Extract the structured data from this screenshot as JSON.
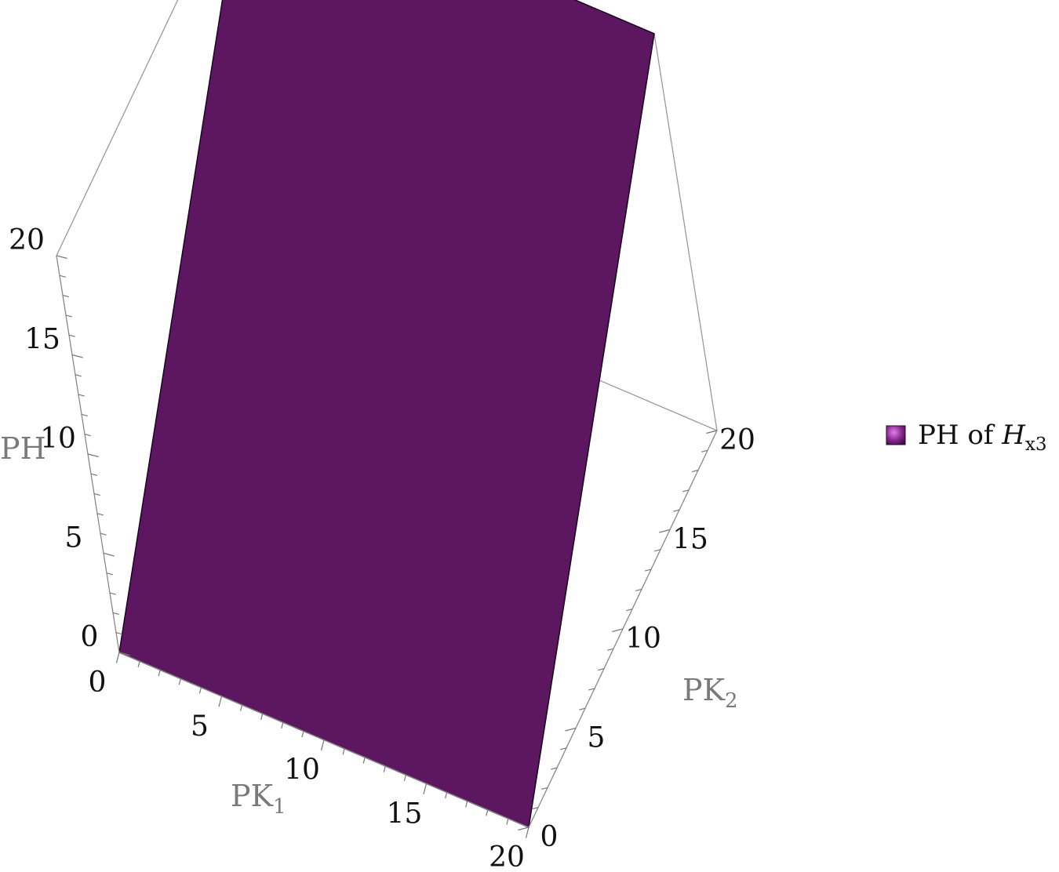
{
  "chart_data": {
    "type": "surface3d",
    "title": "",
    "axes": {
      "x": {
        "label": "PK",
        "label_sub": "1",
        "range": [
          0,
          20
        ],
        "ticks": [
          0,
          5,
          10,
          15,
          20
        ],
        "minor_step": 1
      },
      "y": {
        "label": "PK",
        "label_sub": "2",
        "range": [
          0,
          20
        ],
        "ticks": [
          0,
          5,
          10,
          15,
          20
        ],
        "minor_step": 1
      },
      "z": {
        "label": "PH",
        "range": [
          0,
          20
        ],
        "ticks": [
          0,
          5,
          10,
          15,
          20
        ],
        "minor_step": 1
      }
    },
    "series": [
      {
        "name": "PH of H_x3",
        "color": "#5c1760",
        "surface_corners": [
          {
            "x": 0,
            "y": 0,
            "z": 0
          },
          {
            "x": 20,
            "y": 0,
            "z": 0
          },
          {
            "x": 20,
            "y": 20,
            "z": 20
          },
          {
            "x": 0,
            "y": 20,
            "z": 20
          }
        ]
      }
    ],
    "legend": {
      "position": "right",
      "text": "PH of ",
      "symbol": "H",
      "symbol_sub": "x3",
      "swatch_color": "#8a2a93"
    }
  }
}
